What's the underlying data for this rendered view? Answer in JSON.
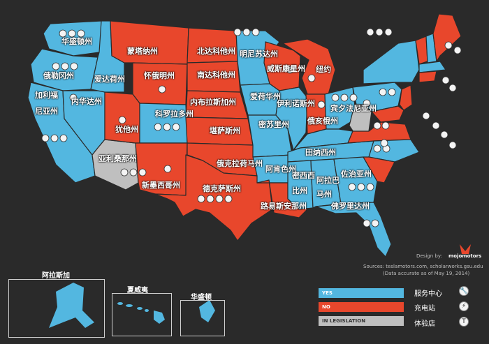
{
  "colors": {
    "yes": "#53b7e0",
    "no": "#e8472c",
    "in_legislation": "#bfbfbf",
    "background": "#2a2a2a"
  },
  "states": {
    "washington": "华盛顿州",
    "oregon": "俄勒冈州",
    "idaho": "爱达荷州",
    "nevada": "内华达州",
    "california": "加利福尼亚州",
    "california_line1": "加利福",
    "california_line2": "尼亚州",
    "montana": "蒙塔纳州",
    "wyoming": "怀俄明州",
    "utah": "犹他州",
    "colorado": "科罗拉多州",
    "arizona": "亚利桑那州",
    "new_mexico": "新墨西哥州",
    "north_dakota": "北达科他州",
    "south_dakota": "南达科他州",
    "nebraska": "内布拉斯加州",
    "kansas": "堪萨斯州",
    "oklahoma": "俄克拉荷马州",
    "texas": "德克萨斯州",
    "minnesota": "明尼苏达州",
    "iowa": "爱荷华州",
    "missouri": "密苏里州",
    "arkansas": "阿肯色州",
    "louisiana": "路易斯安那州",
    "wisconsin": "威斯康星州",
    "illinois": "伊利诺斯州",
    "michigan": "纽约",
    "ohio": "俄亥俄州",
    "west_virginia": "宾夕法尼亚州",
    "tennessee": "田纳西州",
    "mississippi_line1": "密西西",
    "mississippi_line2": "比州",
    "alabama_line1": "阿拉巴",
    "alabama_line2": "马州",
    "georgia": "佐治亚州",
    "florida": "佛罗里达州"
  },
  "insets": {
    "alaska": "阿拉斯加",
    "hawaii": "夏威夷",
    "dc": "华盛顿"
  },
  "credits": {
    "design_by": "Design by:",
    "brand": "mojomotors",
    "sources": "Sources: teslamotors.com, scholarworks.gsu.edu",
    "accuracy": "(Data accurate as of May 19, 2014)"
  },
  "legend": {
    "yes": "YES",
    "no": "NO",
    "in_legislation": "IN LEGISLATION",
    "service_center": "服务中心",
    "charging_station": "充电站",
    "store": "体验店"
  },
  "icons": {
    "service_center": "wrench-icon",
    "charging_station": "lightning-icon",
    "store": "tesla-logo-icon"
  }
}
